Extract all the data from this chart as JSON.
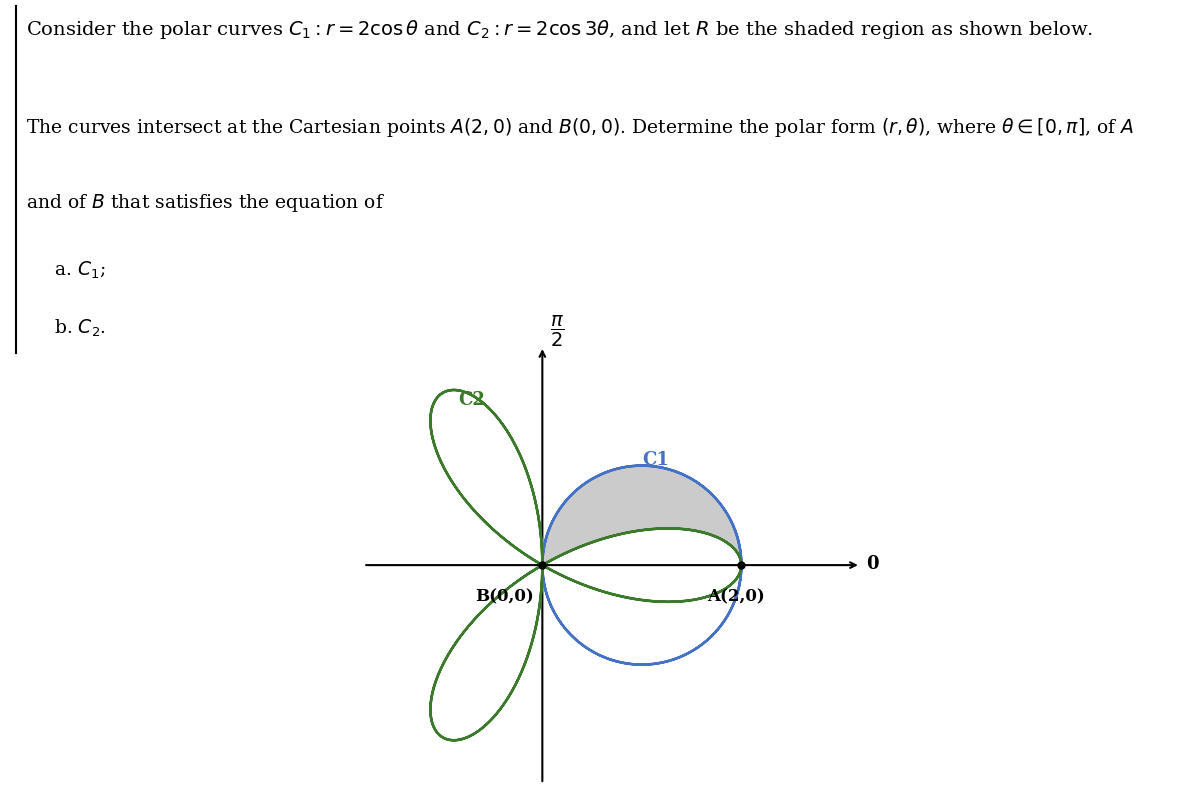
{
  "C1_color": "#4472C4",
  "C2_color": "#3A7A2A",
  "shaded_color": "#B0B0B0",
  "shaded_alpha": 0.65,
  "label_A": "A(2,0)",
  "label_B": "B(0,0)",
  "label_C1": "C1",
  "label_C2": "C2",
  "label_O": "0",
  "border_line_color": "#888888"
}
